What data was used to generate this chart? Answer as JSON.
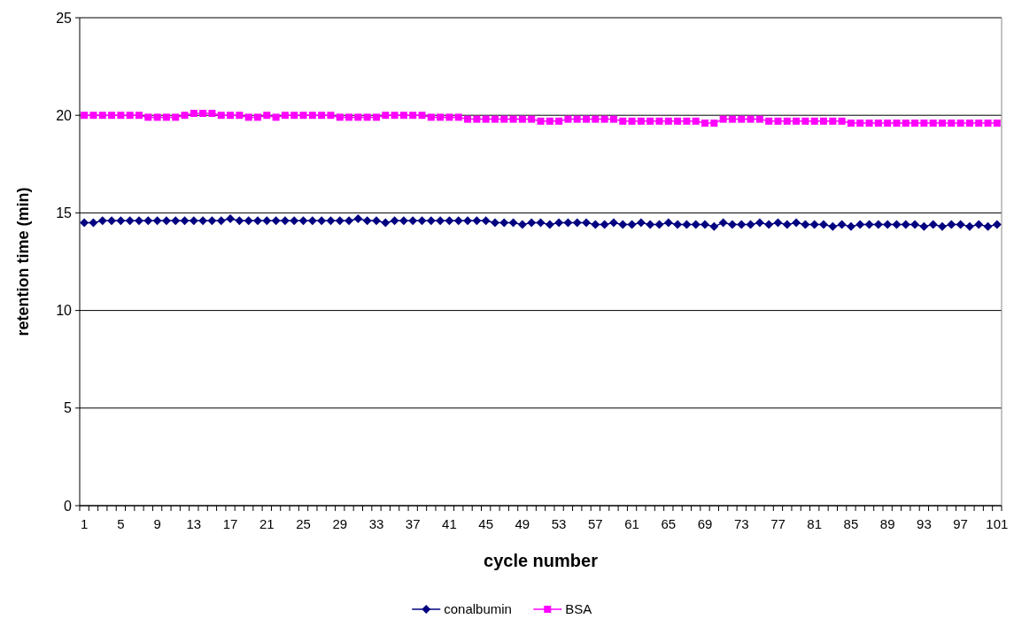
{
  "chart_data": {
    "type": "line",
    "xlabel": "cycle number",
    "ylabel": "retention time (min)",
    "categories": [
      "1",
      null,
      null,
      null,
      "5",
      null,
      null,
      null,
      "9",
      null,
      null,
      null,
      "13",
      null,
      null,
      null,
      "17",
      null,
      null,
      null,
      "21",
      null,
      null,
      null,
      "25",
      null,
      null,
      null,
      "29",
      null,
      null,
      null,
      "33",
      null,
      null,
      null,
      "37",
      null,
      null,
      null,
      "41",
      null,
      null,
      null,
      "45",
      null,
      null,
      null,
      "49",
      null,
      null,
      null,
      "53",
      null,
      null,
      null,
      "57",
      null,
      null,
      null,
      "61",
      null,
      null,
      null,
      "65",
      null,
      null,
      null,
      "69",
      null,
      null,
      null,
      "73",
      null,
      null,
      null,
      "77",
      null,
      null,
      null,
      "81",
      null,
      null,
      null,
      "85",
      null,
      null,
      null,
      "89",
      null,
      null,
      null,
      "93",
      null,
      null,
      null,
      "97",
      null,
      null,
      null,
      "101"
    ],
    "series": [
      {
        "name": "conalbumin",
        "color": "#000080",
        "marker": "diamond",
        "values": [
          14.5,
          14.5,
          14.6,
          14.6,
          14.6,
          14.6,
          14.6,
          14.6,
          14.6,
          14.6,
          14.6,
          14.6,
          14.6,
          14.6,
          14.6,
          14.6,
          14.7,
          14.6,
          14.6,
          14.6,
          14.6,
          14.6,
          14.6,
          14.6,
          14.6,
          14.6,
          14.6,
          14.6,
          14.6,
          14.6,
          14.7,
          14.6,
          14.6,
          14.5,
          14.6,
          14.6,
          14.6,
          14.6,
          14.6,
          14.6,
          14.6,
          14.6,
          14.6,
          14.6,
          14.6,
          14.5,
          14.5,
          14.5,
          14.4,
          14.5,
          14.5,
          14.4,
          14.5,
          14.5,
          14.5,
          14.5,
          14.4,
          14.4,
          14.5,
          14.4,
          14.4,
          14.5,
          14.4,
          14.4,
          14.5,
          14.4,
          14.4,
          14.4,
          14.4,
          14.3,
          14.5,
          14.4,
          14.4,
          14.4,
          14.5,
          14.4,
          14.5,
          14.4,
          14.5,
          14.4,
          14.4,
          14.4,
          14.3,
          14.4,
          14.3,
          14.4,
          14.4,
          14.4,
          14.4,
          14.4,
          14.4,
          14.4,
          14.3,
          14.4,
          14.3,
          14.4,
          14.4,
          14.3,
          14.4,
          14.3,
          14.4
        ]
      },
      {
        "name": "BSA",
        "color": "#ff00ff",
        "marker": "square",
        "values": [
          20.0,
          20.0,
          20.0,
          20.0,
          20.0,
          20.0,
          20.0,
          19.9,
          19.9,
          19.9,
          19.9,
          20.0,
          20.1,
          20.1,
          20.1,
          20.0,
          20.0,
          20.0,
          19.9,
          19.9,
          20.0,
          19.9,
          20.0,
          20.0,
          20.0,
          20.0,
          20.0,
          20.0,
          19.9,
          19.9,
          19.9,
          19.9,
          19.9,
          20.0,
          20.0,
          20.0,
          20.0,
          20.0,
          19.9,
          19.9,
          19.9,
          19.9,
          19.8,
          19.8,
          19.8,
          19.8,
          19.8,
          19.8,
          19.8,
          19.8,
          19.7,
          19.7,
          19.7,
          19.8,
          19.8,
          19.8,
          19.8,
          19.8,
          19.8,
          19.7,
          19.7,
          19.7,
          19.7,
          19.7,
          19.7,
          19.7,
          19.7,
          19.7,
          19.6,
          19.6,
          19.8,
          19.8,
          19.8,
          19.8,
          19.8,
          19.7,
          19.7,
          19.7,
          19.7,
          19.7,
          19.7,
          19.7,
          19.7,
          19.7,
          19.6,
          19.6,
          19.6,
          19.6,
          19.6,
          19.6,
          19.6,
          19.6,
          19.6,
          19.6,
          19.6,
          19.6,
          19.6,
          19.6,
          19.6,
          19.6,
          19.6
        ]
      }
    ],
    "ylim": [
      0,
      25
    ],
    "yticks": [
      0,
      5,
      10,
      15,
      20,
      25
    ],
    "grid": "y",
    "legend": "bottom"
  }
}
